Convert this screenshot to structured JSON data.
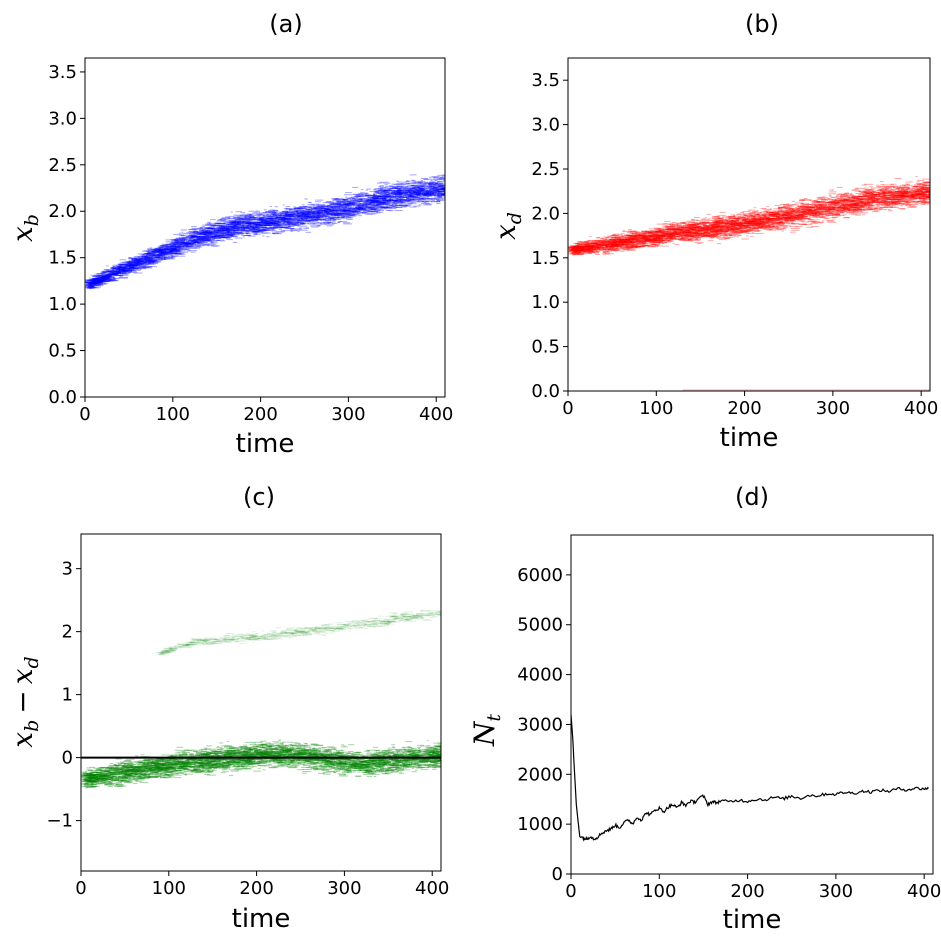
{
  "chart_data": [
    {
      "type": "scatter",
      "title": "(a)",
      "xlabel": "time",
      "ylabel": "x_b",
      "ylabel_main": "x",
      "ylabel_sub": "b",
      "xlim": [
        0,
        410
      ],
      "ylim": [
        0,
        3.65
      ],
      "xticks": [
        0,
        100,
        200,
        300,
        400
      ],
      "yticks": [
        0.0,
        0.5,
        1.0,
        1.5,
        2.0,
        2.5,
        3.0,
        3.5
      ],
      "ytick_labels": [
        "0.0",
        "0.5",
        "1.0",
        "1.5",
        "2.0",
        "2.5",
        "3.0",
        "3.5"
      ],
      "color": "#0000ff",
      "series": [
        {
          "x": [
            0,
            25,
            50,
            75,
            100,
            125,
            150,
            175,
            200,
            225,
            250,
            275,
            300,
            325,
            350,
            375,
            400,
            410
          ],
          "center": [
            1.22,
            1.32,
            1.42,
            1.53,
            1.62,
            1.72,
            1.8,
            1.86,
            1.88,
            1.92,
            1.96,
            2.0,
            2.05,
            2.12,
            2.17,
            2.21,
            2.24,
            2.25
          ],
          "spread": [
            0.05,
            0.07,
            0.08,
            0.09,
            0.1,
            0.11,
            0.11,
            0.11,
            0.12,
            0.12,
            0.12,
            0.12,
            0.13,
            0.13,
            0.13,
            0.13,
            0.13,
            0.13
          ]
        }
      ]
    },
    {
      "type": "scatter",
      "title": "(b)",
      "xlabel": "time",
      "ylabel": "x_d",
      "ylabel_main": "x",
      "ylabel_sub": "d",
      "xlim": [
        0,
        410
      ],
      "ylim": [
        0,
        3.75
      ],
      "xticks": [
        0,
        100,
        200,
        300,
        400
      ],
      "yticks": [
        0.0,
        0.5,
        1.0,
        1.5,
        2.0,
        2.5,
        3.0,
        3.5
      ],
      "ytick_labels": [
        "0.0",
        "0.5",
        "1.0",
        "1.5",
        "2.0",
        "2.5",
        "3.0",
        "3.5"
      ],
      "color": "#ff0000",
      "series": [
        {
          "x": [
            0,
            25,
            50,
            75,
            100,
            125,
            150,
            175,
            200,
            225,
            250,
            275,
            300,
            325,
            350,
            375,
            400,
            410
          ],
          "center": [
            1.6,
            1.63,
            1.67,
            1.71,
            1.75,
            1.8,
            1.83,
            1.86,
            1.89,
            1.94,
            1.99,
            2.04,
            2.09,
            2.14,
            2.18,
            2.21,
            2.24,
            2.25
          ],
          "spread": [
            0.05,
            0.08,
            0.09,
            0.1,
            0.1,
            0.11,
            0.11,
            0.12,
            0.12,
            0.12,
            0.13,
            0.13,
            0.13,
            0.13,
            0.13,
            0.13,
            0.13,
            0.13
          ]
        }
      ],
      "baseline_y": 0.0
    },
    {
      "type": "scatter",
      "title": "(c)",
      "xlabel": "time",
      "ylabel": "x_b − x_d",
      "ylabel_main": "x",
      "ylabel_sub": "b",
      "ylabel_minus": "−",
      "ylabel_main2": "x",
      "ylabel_sub2": "d",
      "xlim": [
        0,
        410
      ],
      "ylim": [
        -1.8,
        3.55
      ],
      "xticks": [
        0,
        100,
        200,
        300,
        400
      ],
      "yticks": [
        -1,
        0,
        1,
        2,
        3
      ],
      "ytick_labels": [
        "−1",
        "0",
        "1",
        "2",
        "3"
      ],
      "color": "#008000",
      "series": [
        {
          "x": [
            0,
            25,
            50,
            75,
            100,
            125,
            150,
            175,
            200,
            225,
            250,
            275,
            300,
            325,
            350,
            375,
            400,
            410
          ],
          "center": [
            -0.33,
            -0.28,
            -0.22,
            -0.16,
            -0.1,
            -0.06,
            -0.02,
            0.02,
            0.05,
            0.06,
            0.04,
            0.0,
            -0.06,
            -0.08,
            -0.04,
            0.0,
            0.03,
            0.03
          ],
          "spread": [
            0.12,
            0.15,
            0.18,
            0.18,
            0.18,
            0.18,
            0.18,
            0.18,
            0.18,
            0.18,
            0.18,
            0.18,
            0.18,
            0.18,
            0.18,
            0.18,
            0.18,
            0.18
          ]
        },
        {
          "x": [
            85,
            125,
            175,
            225,
            275,
            325,
            375,
            410
          ],
          "center": [
            1.66,
            1.84,
            1.9,
            1.97,
            2.05,
            2.14,
            2.25,
            2.32
          ],
          "spread": [
            0.03,
            0.06,
            0.07,
            0.08,
            0.08,
            0.08,
            0.08,
            0.08
          ]
        }
      ],
      "hline_y": 0
    },
    {
      "type": "line",
      "title": "(d)",
      "xlabel": "time",
      "ylabel": "N_t",
      "ylabel_main": "N",
      "ylabel_sub": "t",
      "xlim": [
        0,
        410
      ],
      "ylim": [
        0,
        6800
      ],
      "xticks": [
        0,
        100,
        200,
        300,
        400
      ],
      "yticks": [
        0,
        1000,
        2000,
        3000,
        4000,
        5000,
        6000
      ],
      "ytick_labels": [
        "0",
        "1000",
        "2000",
        "3000",
        "4000",
        "5000",
        "6000"
      ],
      "color": "#000000",
      "series": [
        {
          "x": [
            0,
            2,
            4,
            6,
            8,
            10,
            14,
            18,
            22,
            26,
            30,
            35,
            40,
            45,
            50,
            55,
            60,
            65,
            70,
            75,
            80,
            85,
            90,
            95,
            100,
            105,
            110,
            115,
            120,
            125,
            130,
            135,
            140,
            145,
            150,
            155,
            160,
            165,
            170,
            180,
            190,
            200,
            210,
            220,
            230,
            240,
            250,
            260,
            270,
            280,
            290,
            300,
            310,
            320,
            330,
            340,
            350,
            360,
            370,
            380,
            390,
            400,
            405
          ],
          "y": [
            3200,
            2700,
            2050,
            1400,
            1050,
            760,
            720,
            700,
            760,
            700,
            740,
            820,
            870,
            900,
            980,
            930,
            1030,
            1080,
            1010,
            1140,
            1080,
            1230,
            1190,
            1280,
            1320,
            1250,
            1340,
            1390,
            1330,
            1430,
            1380,
            1460,
            1440,
            1530,
            1560,
            1400,
            1450,
            1430,
            1470,
            1450,
            1480,
            1460,
            1500,
            1490,
            1540,
            1510,
            1560,
            1520,
            1580,
            1570,
            1610,
            1600,
            1640,
            1620,
            1660,
            1650,
            1680,
            1660,
            1710,
            1690,
            1720,
            1710,
            1720
          ]
        }
      ]
    }
  ]
}
